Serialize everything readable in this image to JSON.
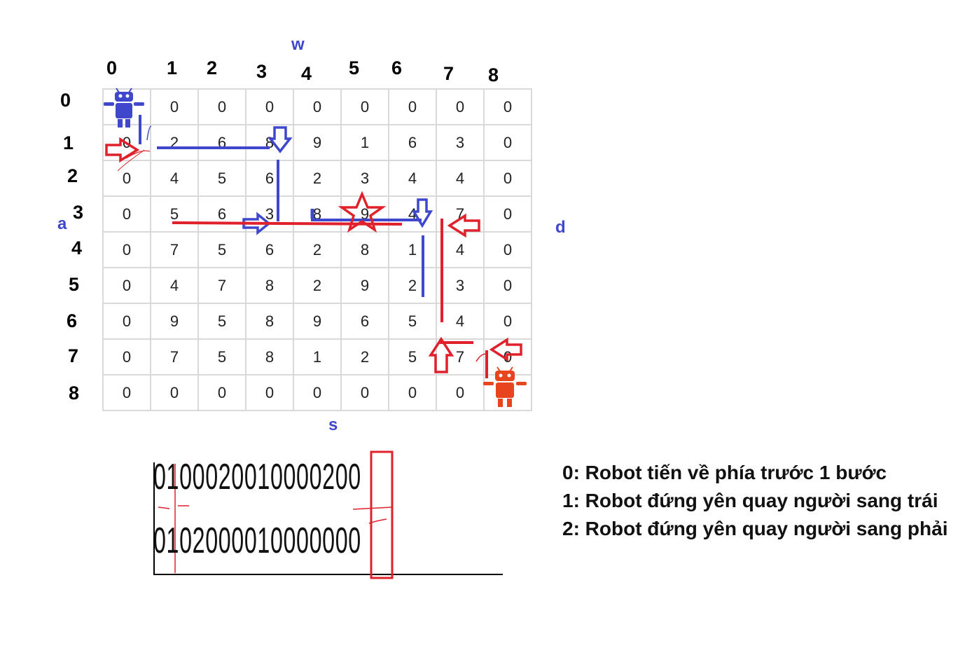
{
  "directions": {
    "up": "w",
    "left": "a",
    "right": "d",
    "down": "s"
  },
  "column_headers": [
    "0",
    "1",
    "2",
    "3",
    "4",
    "5",
    "6",
    "7",
    "8"
  ],
  "row_headers": [
    "0",
    "1",
    "2",
    "3",
    "4",
    "5",
    "6",
    "7",
    "8"
  ],
  "grid": [
    [
      "",
      "0",
      "0",
      "0",
      "0",
      "0",
      "0",
      "0",
      "0"
    ],
    [
      "0",
      "2",
      "6",
      "8",
      "9",
      "1",
      "6",
      "3",
      "0"
    ],
    [
      "0",
      "4",
      "5",
      "6",
      "2",
      "3",
      "4",
      "4",
      "0"
    ],
    [
      "0",
      "5",
      "6",
      "3",
      "8",
      "9",
      "4",
      "7",
      "0"
    ],
    [
      "0",
      "7",
      "5",
      "6",
      "2",
      "8",
      "1",
      "4",
      "0"
    ],
    [
      "0",
      "4",
      "7",
      "8",
      "2",
      "9",
      "2",
      "3",
      "0"
    ],
    [
      "0",
      "9",
      "5",
      "8",
      "9",
      "6",
      "5",
      "4",
      "0"
    ],
    [
      "0",
      "7",
      "5",
      "8",
      "1",
      "2",
      "5",
      "7",
      "0"
    ],
    [
      "0",
      "0",
      "0",
      "0",
      "0",
      "0",
      "0",
      "0",
      ""
    ]
  ],
  "robots": {
    "blue_color": "#3f48cc",
    "red_color": "#e8451f"
  },
  "path_colors": {
    "blue": "#3f48cc",
    "red": "#e0202a"
  },
  "sequences": {
    "blue_robot": "0100020010000200",
    "red_robot": "0102000010000000"
  },
  "legend": [
    "0: Robot tiến về phía trước 1 bước",
    "1: Robot đứng yên quay người sang trái",
    "2: Robot đứng yên quay người sang phải"
  ]
}
